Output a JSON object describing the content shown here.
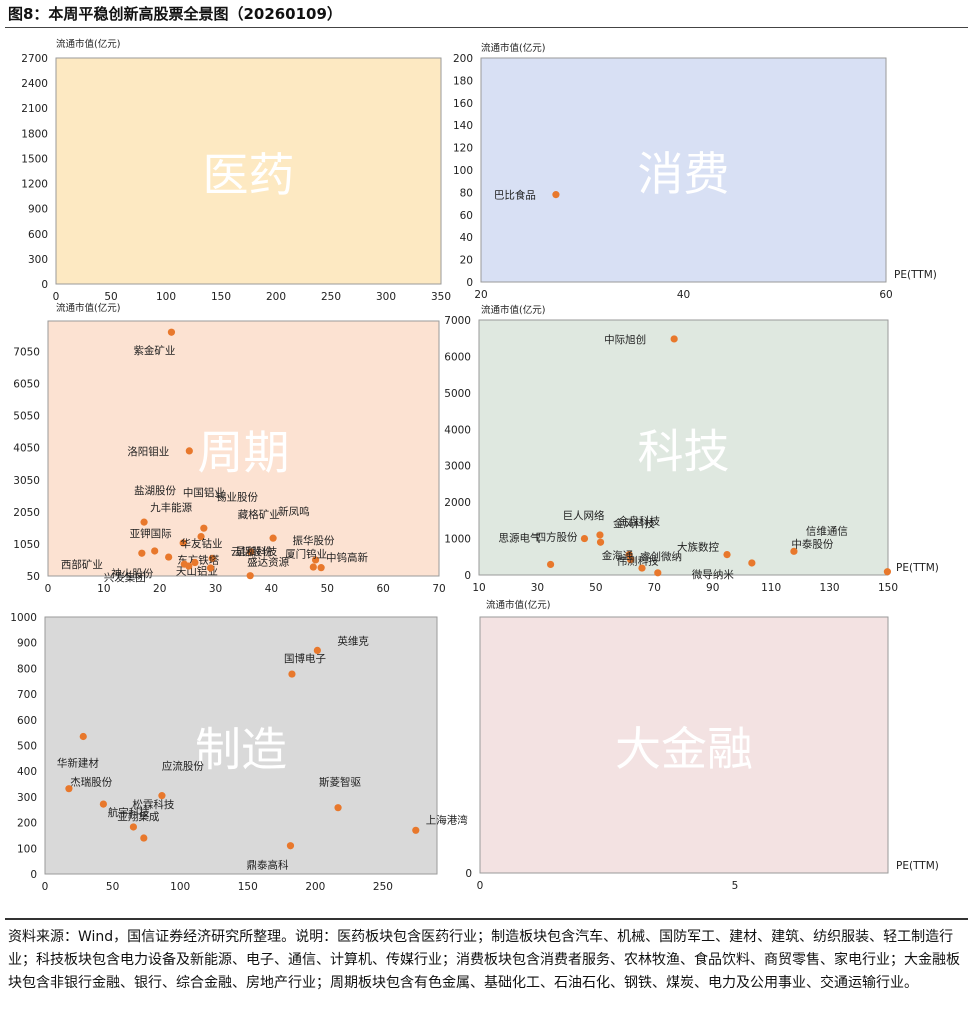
{
  "header": {
    "title": "图8：本周平稳创新高股票全景图（20260109）"
  },
  "note": "资料来源：Wind，国信证券经济研究所整理。说明：医药板块包含医药行业；制造板块包含汽车、机械、国防军工、建材、建筑、纺织服装、轻工制造行业；科技板块包含电力设备及新能源、电子、通信、计算机、传媒行业；消费板块包含消费者服务、农林牧渔、食品饮料、商贸零售、家电行业；大金融板块包含非银行金融、银行、综合金融、房地产行业；周期板块包含有色金属、基础化工、石油石化、钢铁、煤炭、电力及公用事业、交通运输行业。",
  "colors": {
    "point": "#e8782c"
  },
  "chart_data": [
    {
      "type": "scatter",
      "title": "医药",
      "ylabel": "流通市值(亿元)",
      "xlabel": "",
      "bg": "#fde9c2",
      "xlim": [
        0,
        350
      ],
      "ylim": [
        0,
        2700
      ],
      "xticks": [
        0,
        50,
        100,
        150,
        200,
        250,
        300,
        350
      ],
      "yticks": [
        0,
        300,
        600,
        900,
        1200,
        1500,
        1800,
        2100,
        2400,
        2700
      ],
      "points": []
    },
    {
      "type": "scatter",
      "title": "消费",
      "ylabel": "流通市值(亿元)",
      "xlabel": "PE(TTM)",
      "bg": "#d8e0f4",
      "xlim": [
        20,
        60
      ],
      "ylim": [
        0,
        200
      ],
      "xticks": [
        20,
        40,
        60
      ],
      "yticks": [
        0,
        20,
        40,
        60,
        80,
        100,
        120,
        140,
        160,
        180,
        200
      ],
      "points": [
        {
          "x": 27.4,
          "y": 78,
          "label": "巴比食品"
        }
      ]
    },
    {
      "type": "scatter",
      "title": "周期",
      "ylabel": "流通市值(亿元)",
      "xlabel": "",
      "bg": "#fce2d2",
      "xlim": [
        0,
        70
      ],
      "ylim": [
        50,
        8000
      ],
      "xticks": [
        0,
        10,
        20,
        30,
        40,
        50,
        60,
        70
      ],
      "yticks": [
        50,
        1050,
        2050,
        3050,
        4050,
        5050,
        6050,
        7050
      ],
      "points": [
        {
          "x": 22.1,
          "y": 7650,
          "label": "紫金矿业"
        },
        {
          "x": 25.3,
          "y": 3950,
          "label": "洛阳钼业"
        },
        {
          "x": 17.2,
          "y": 1730,
          "label": "盐湖股份"
        },
        {
          "x": 27.9,
          "y": 1540,
          "label": "中国铝业"
        },
        {
          "x": 27.4,
          "y": 1280,
          "label": "锡业股份"
        },
        {
          "x": 40.3,
          "y": 1230,
          "label": "新凤鸣"
        },
        {
          "x": 24.2,
          "y": 1080,
          "label": "九丰能源"
        },
        {
          "x": 36.3,
          "y": 800,
          "label": "藏格矿业"
        },
        {
          "x": 19.1,
          "y": 830,
          "label": "亚钾国际"
        },
        {
          "x": 16.8,
          "y": 760,
          "label": "西部矿业"
        },
        {
          "x": 29.4,
          "y": 600,
          "label": "东方铁塔"
        },
        {
          "x": 26.3,
          "y": 470,
          "label": "天山铝业"
        },
        {
          "x": 25.2,
          "y": 360,
          "label": "兴发集团"
        },
        {
          "x": 24.4,
          "y": 420,
          "label": "神火股份"
        },
        {
          "x": 29.1,
          "y": 300,
          "label": "华友钴业"
        },
        {
          "x": 47.9,
          "y": 550,
          "label": "振华股份"
        },
        {
          "x": 47.5,
          "y": 330,
          "label": "星和科技"
        },
        {
          "x": 48.9,
          "y": 310,
          "label": "厦门钨业"
        },
        {
          "x": 36.2,
          "y": 60,
          "label": "盛达资源"
        },
        {
          "x": 21.6,
          "y": 640,
          "label": "云铝股份"
        }
      ],
      "labels_only": [
        "中钨高新"
      ]
    },
    {
      "type": "scatter",
      "title": "科技",
      "ylabel": "流通市值(亿元)",
      "xlabel": "PE(TTM)",
      "bg": "#dfe8e0",
      "xlim": [
        10,
        150
      ],
      "ylim": [
        0,
        7000
      ],
      "xticks": [
        10,
        30,
        50,
        70,
        90,
        110,
        130,
        150
      ],
      "yticks": [
        0,
        1000,
        2000,
        3000,
        4000,
        5000,
        6000,
        7000
      ],
      "points": [
        {
          "x": 76.8,
          "y": 6480,
          "label": "中际旭创"
        },
        {
          "x": 51.4,
          "y": 1100,
          "label": "金风科技"
        },
        {
          "x": 46.1,
          "y": 1000,
          "label": "思源电气"
        },
        {
          "x": 51.6,
          "y": 900,
          "label": "巨人网络"
        },
        {
          "x": 61.4,
          "y": 560,
          "label": "金盘科技"
        },
        {
          "x": 61.9,
          "y": 420,
          "label": "伟测科技"
        },
        {
          "x": 34.5,
          "y": 290,
          "label": "四方股份"
        },
        {
          "x": 65.8,
          "y": 190,
          "label": "睿创微纳"
        },
        {
          "x": 71.2,
          "y": 60,
          "label": "金海通"
        },
        {
          "x": 94.9,
          "y": 560,
          "label": "大族数控"
        },
        {
          "x": 103.4,
          "y": 330,
          "label": "微导纳米"
        },
        {
          "x": 117.8,
          "y": 650,
          "label": "信维通信"
        },
        {
          "x": 149.8,
          "y": 90,
          "label": "中泰股份"
        }
      ]
    },
    {
      "type": "scatter",
      "title": "制造",
      "ylabel": "",
      "xlabel": "",
      "bg": "#d9d9d9",
      "xlim": [
        0,
        290
      ],
      "ylim": [
        0,
        1000
      ],
      "xticks": [
        0,
        50,
        100,
        150,
        200,
        250
      ],
      "yticks": [
        0,
        100,
        200,
        300,
        400,
        500,
        600,
        700,
        800,
        900,
        1000
      ],
      "points": [
        {
          "x": 201.5,
          "y": 870,
          "label": "英维克"
        },
        {
          "x": 182.7,
          "y": 778,
          "label": "国博电子"
        },
        {
          "x": 28.3,
          "y": 535,
          "label": "杰瑞股份"
        },
        {
          "x": 17.7,
          "y": 332,
          "label": "华新建材"
        },
        {
          "x": 43.2,
          "y": 272,
          "label": "松霖科技"
        },
        {
          "x": 86.5,
          "y": 305,
          "label": "应流股份"
        },
        {
          "x": 216.8,
          "y": 258,
          "label": "斯菱智驱"
        },
        {
          "x": 274.3,
          "y": 170,
          "label": "上海港湾"
        },
        {
          "x": 65.4,
          "y": 183,
          "label": "亚翔集成"
        },
        {
          "x": 73.1,
          "y": 140,
          "label": "航宇科技"
        },
        {
          "x": 181.6,
          "y": 110,
          "label": "鼎泰高科"
        }
      ]
    },
    {
      "type": "scatter",
      "title": "大金融",
      "ylabel": "流通市值(亿元)",
      "xlabel": "PE(TTM)",
      "bg": "#f3e2e2",
      "xlim": [
        0,
        8
      ],
      "ylim": [
        0,
        10
      ],
      "xticks": [
        0,
        5
      ],
      "yticks": [
        0
      ],
      "points": []
    }
  ]
}
